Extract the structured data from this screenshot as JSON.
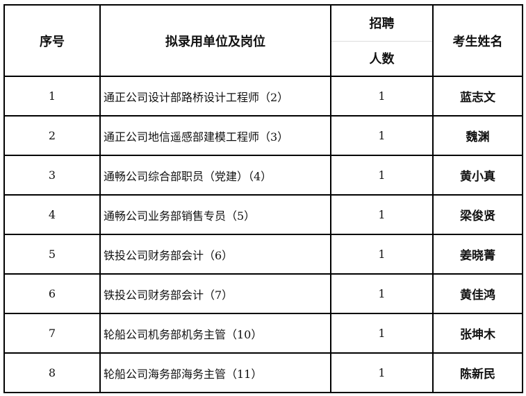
{
  "headers": {
    "index": "序号",
    "unit": "拟录用单位及岗位",
    "count_top": "招聘",
    "count_bottom": "人数",
    "name": "考生姓名"
  },
  "rows": [
    {
      "index": "1",
      "unit": "通正公司设计部路桥设计工程师（2）",
      "count": "1",
      "name": "蓝志文"
    },
    {
      "index": "2",
      "unit": "通正公司地信遥感部建模工程师（3）",
      "count": "1",
      "name": "魏渊"
    },
    {
      "index": "3",
      "unit": "通畅公司综合部职员（党建）（4）",
      "count": "1",
      "name": "黄小真"
    },
    {
      "index": "4",
      "unit": "通畅公司业务部销售专员（5）",
      "count": "1",
      "name": "梁俊贤"
    },
    {
      "index": "5",
      "unit": "铁投公司财务部会计（6）",
      "count": "1",
      "name": "姜晓菁"
    },
    {
      "index": "6",
      "unit": "铁投公司财务部会计（7）",
      "count": "1",
      "name": "黄佳鸿"
    },
    {
      "index": "7",
      "unit": "轮船公司机务部机务主管（10）",
      "count": "1",
      "name": "张坤木"
    },
    {
      "index": "8",
      "unit": "轮船公司海务部海务主管（11）",
      "count": "1",
      "name": "陈新民"
    }
  ]
}
